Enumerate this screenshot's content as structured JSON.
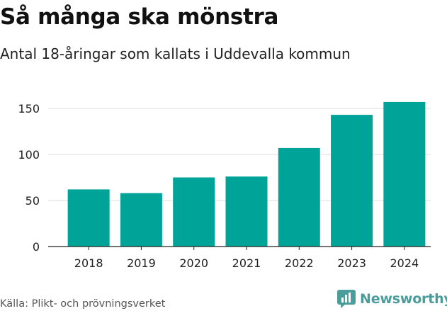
{
  "title": "Så många ska mönstra",
  "subtitle": "Antal 18-åringar som kallats i Uddevalla kommun",
  "source": "Källa: Plikt- och prövningsverket",
  "brand": {
    "name": "Newsworthy",
    "icon": "newsworthy-logo-icon",
    "color": "#4a9d9a"
  },
  "colors": {
    "bar": "#00a398",
    "grid": "#dddddd",
    "axis": "#222222",
    "tick_text": "#222222"
  },
  "chart_data": {
    "type": "bar",
    "title": "Så många ska mönstra",
    "subtitle": "Antal 18-åringar som kallats i Uddevalla kommun",
    "xlabel": "",
    "ylabel": "",
    "categories": [
      "2018",
      "2019",
      "2020",
      "2021",
      "2022",
      "2023",
      "2024"
    ],
    "values": [
      62,
      58,
      75,
      76,
      107,
      143,
      157
    ],
    "ylim": [
      0,
      160
    ],
    "yticks": [
      0,
      50,
      100,
      150
    ],
    "grid": true,
    "legend": "none"
  }
}
